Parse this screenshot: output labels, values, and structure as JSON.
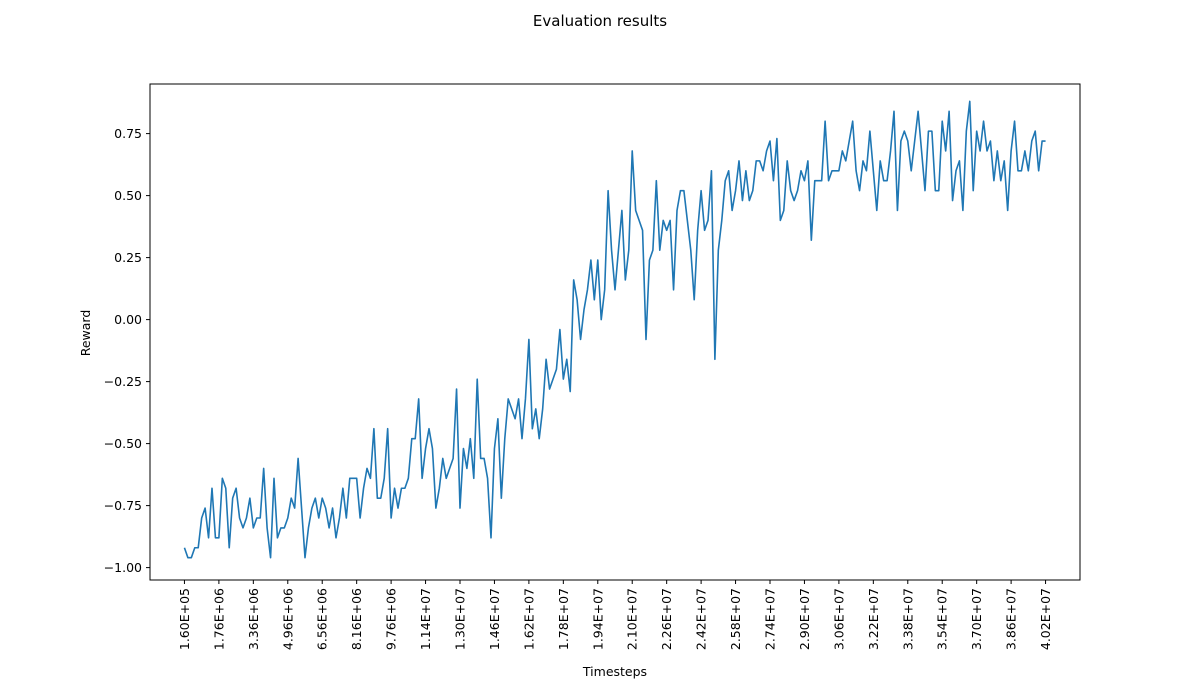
{
  "chart_data": {
    "type": "line",
    "title": "Evaluation results",
    "xlabel": "Timesteps",
    "ylabel": "Reward",
    "grid": false,
    "legend": "none",
    "line_color": "#1f77b4",
    "xlim": [
      -1440000,
      41760000
    ],
    "ylim": [
      -1.05,
      0.95
    ],
    "x_start": 160000,
    "x_step": 160000,
    "x_ticks": {
      "values": [
        160000,
        1760000,
        3360000,
        4960000,
        6560000,
        8160000,
        9760000,
        11360000,
        12960000,
        14560000,
        16160000,
        17760000,
        19360000,
        20960000,
        22560000,
        24160000,
        25760000,
        27360000,
        28960000,
        30560000,
        32160000,
        33760000,
        35360000,
        36960000,
        38560000,
        40160000
      ],
      "labels": [
        "1.60E+05",
        "1.76E+06",
        "3.36E+06",
        "4.96E+06",
        "6.56E+06",
        "8.16E+06",
        "9.76E+06",
        "1.14E+07",
        "1.30E+07",
        "1.46E+07",
        "1.62E+07",
        "1.78E+07",
        "1.94E+07",
        "2.10E+07",
        "2.26E+07",
        "2.42E+07",
        "2.58E+07",
        "2.74E+07",
        "2.90E+07",
        "3.06E+07",
        "3.22E+07",
        "3.38E+07",
        "3.54E+07",
        "3.70E+07",
        "3.86E+07",
        "4.02E+07"
      ]
    },
    "y_ticks": {
      "values": [
        -1.0,
        -0.75,
        -0.5,
        -0.25,
        0.0,
        0.25,
        0.5,
        0.75
      ],
      "labels": [
        "−1.00",
        "−0.75",
        "−0.50",
        "−0.25",
        "0.00",
        "0.25",
        "0.50",
        "0.75"
      ]
    },
    "series": [
      {
        "values": [
          -0.92,
          -0.96,
          -0.96,
          -0.92,
          -0.92,
          -0.8,
          -0.76,
          -0.88,
          -0.68,
          -0.88,
          -0.88,
          -0.64,
          -0.68,
          -0.92,
          -0.72,
          -0.68,
          -0.8,
          -0.84,
          -0.8,
          -0.72,
          -0.84,
          -0.8,
          -0.8,
          -0.6,
          -0.84,
          -0.96,
          -0.64,
          -0.88,
          -0.84,
          -0.84,
          -0.8,
          -0.72,
          -0.76,
          -0.56,
          -0.76,
          -0.96,
          -0.84,
          -0.76,
          -0.72,
          -0.8,
          -0.72,
          -0.76,
          -0.84,
          -0.76,
          -0.88,
          -0.8,
          -0.68,
          -0.8,
          -0.64,
          -0.64,
          -0.64,
          -0.8,
          -0.68,
          -0.6,
          -0.64,
          -0.44,
          -0.72,
          -0.72,
          -0.64,
          -0.44,
          -0.8,
          -0.68,
          -0.76,
          -0.68,
          -0.68,
          -0.64,
          -0.48,
          -0.48,
          -0.32,
          -0.64,
          -0.52,
          -0.44,
          -0.52,
          -0.76,
          -0.68,
          -0.56,
          -0.64,
          -0.6,
          -0.56,
          -0.28,
          -0.76,
          -0.52,
          -0.6,
          -0.48,
          -0.64,
          -0.24,
          -0.56,
          -0.56,
          -0.64,
          -0.88,
          -0.52,
          -0.4,
          -0.72,
          -0.48,
          -0.32,
          -0.36,
          -0.4,
          -0.32,
          -0.48,
          -0.32,
          -0.08,
          -0.44,
          -0.36,
          -0.48,
          -0.36,
          -0.16,
          -0.28,
          -0.24,
          -0.2,
          -0.04,
          -0.24,
          -0.16,
          -0.29,
          0.16,
          0.08,
          -0.08,
          0.04,
          0.12,
          0.24,
          0.08,
          0.24,
          0.0,
          0.12,
          0.52,
          0.28,
          0.12,
          0.28,
          0.44,
          0.16,
          0.28,
          0.68,
          0.44,
          0.4,
          0.36,
          -0.08,
          0.24,
          0.28,
          0.56,
          0.28,
          0.4,
          0.36,
          0.4,
          0.12,
          0.44,
          0.52,
          0.52,
          0.4,
          0.28,
          0.08,
          0.36,
          0.52,
          0.36,
          0.4,
          0.6,
          -0.16,
          0.28,
          0.4,
          0.56,
          0.6,
          0.44,
          0.52,
          0.64,
          0.48,
          0.6,
          0.48,
          0.52,
          0.64,
          0.64,
          0.6,
          0.68,
          0.72,
          0.56,
          0.73,
          0.4,
          0.44,
          0.64,
          0.52,
          0.48,
          0.52,
          0.6,
          0.56,
          0.64,
          0.32,
          0.56,
          0.56,
          0.56,
          0.8,
          0.56,
          0.6,
          0.6,
          0.6,
          0.68,
          0.64,
          0.72,
          0.8,
          0.6,
          0.52,
          0.64,
          0.6,
          0.76,
          0.6,
          0.44,
          0.64,
          0.56,
          0.56,
          0.68,
          0.84,
          0.44,
          0.72,
          0.76,
          0.72,
          0.6,
          0.72,
          0.84,
          0.68,
          0.52,
          0.76,
          0.76,
          0.52,
          0.52,
          0.8,
          0.68,
          0.84,
          0.48,
          0.6,
          0.64,
          0.44,
          0.76,
          0.88,
          0.52,
          0.76,
          0.68,
          0.8,
          0.68,
          0.72,
          0.56,
          0.68,
          0.56,
          0.64,
          0.44,
          0.68,
          0.8,
          0.6,
          0.6,
          0.68,
          0.6,
          0.72,
          0.76,
          0.6,
          0.72,
          0.72
        ]
      }
    ]
  }
}
